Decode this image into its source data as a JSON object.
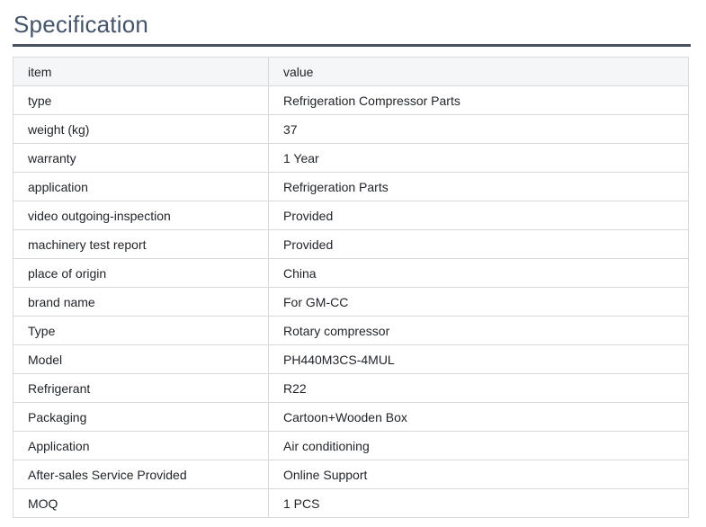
{
  "page": {
    "title": "Specification"
  },
  "table": {
    "headers": [
      "item",
      "value"
    ],
    "rows": [
      {
        "item": "type",
        "value": "Refrigeration Compressor Parts"
      },
      {
        "item": "weight (kg)",
        "value": "37"
      },
      {
        "item": "warranty",
        "value": "1 Year"
      },
      {
        "item": "application",
        "value": "Refrigeration Parts"
      },
      {
        "item": "video outgoing-inspection",
        "value": "Provided"
      },
      {
        "item": "machinery test report",
        "value": "Provided"
      },
      {
        "item": "place of origin",
        "value": "China"
      },
      {
        "item": "brand name",
        "value": "For GM-CC"
      },
      {
        "item": "Type",
        "value": "Rotary compressor"
      },
      {
        "item": "Model",
        "value": "PH440M3CS-4MUL"
      },
      {
        "item": "Refrigerant",
        "value": "R22"
      },
      {
        "item": "Packaging",
        "value": "Cartoon+Wooden Box"
      },
      {
        "item": "Application",
        "value": "Air conditioning"
      },
      {
        "item": "After-sales Service Provided",
        "value": "Online Support"
      },
      {
        "item": "MOQ",
        "value": "1 PCS"
      }
    ]
  },
  "colors": {
    "title_text": "#44546a",
    "divider": "#47525e",
    "header_background": "#f5f6f7",
    "table_border": "#d9d9d9",
    "cell_text": "#1f2328",
    "page_background": "#ffffff"
  }
}
